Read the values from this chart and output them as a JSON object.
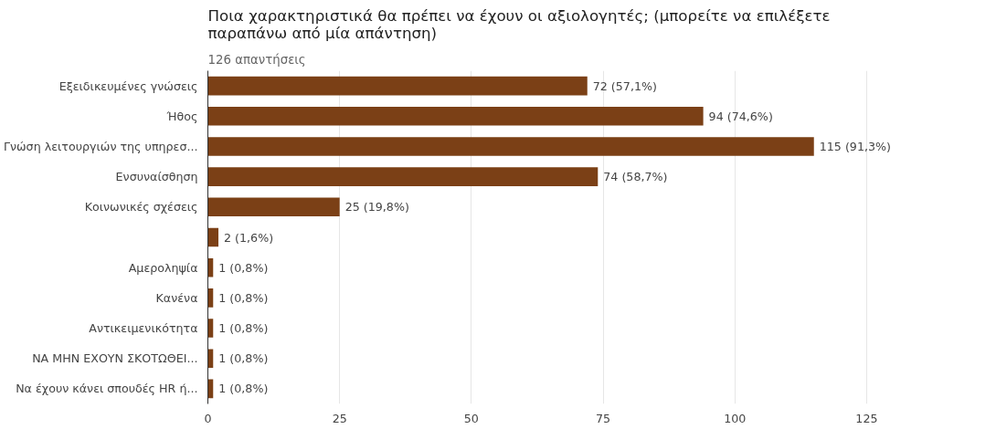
{
  "chart_data": {
    "type": "bar",
    "orientation": "horizontal",
    "title": "Ποια χαρακτηριστικά θα πρέπει να έχουν οι αξιολογητές; (μπορείτε να επιλέξετε παραπάνω από μία απάντηση)",
    "subtitle": "126 απαντήσεις",
    "categories": [
      "Εξειδικευμένες γνώσεις",
      "Ήθος",
      "Γνώση λειτουργιών της υπηρεσ...",
      "Ενσυναίσθηση",
      "Κοινωνικές σχέσεις",
      null,
      "Αμεροληψία",
      "Κανένα",
      "Αντικειμενικότητα",
      "ΝΑ ΜΗΝ ΕΧΟΥΝ ΣΚΟΤΩΘΕΙ...",
      "Να έχουν κάνει σπουδές HR ή..."
    ],
    "values": [
      72,
      94,
      115,
      74,
      25,
      2,
      1,
      1,
      1,
      1,
      1
    ],
    "value_labels": [
      "72 (57,1%)",
      "94 (74,6%)",
      "115 (91,3%)",
      "74 (58,7%)",
      "25 (19,8%)",
      "2 (1,6%)",
      "1 (0,8%)",
      "1 (0,8%)",
      "1 (0,8%)",
      "1 (0,8%)",
      "1 (0,8%)"
    ],
    "color": "#7b4016",
    "xlim": [
      0,
      125
    ],
    "xticks": [
      0,
      25,
      50,
      75,
      100,
      125
    ],
    "grid": "x"
  }
}
